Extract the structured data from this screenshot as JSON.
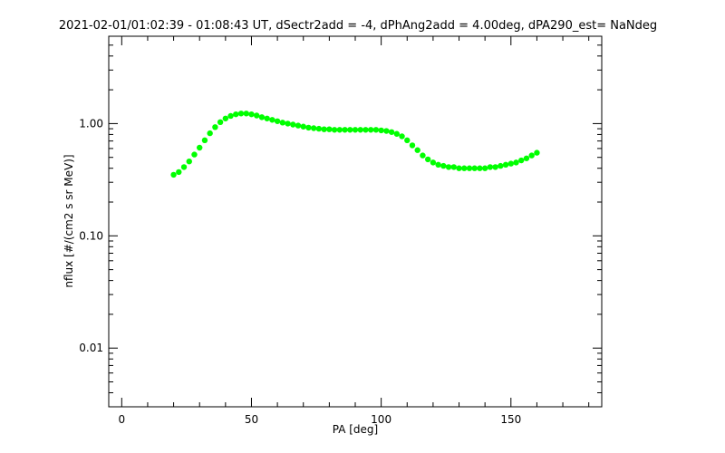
{
  "chart_data": {
    "type": "scatter",
    "title": "2021-02-01/01:02:39 - 01:08:43 UT, dSectr2add = -4, dPhAng2add = 4.00deg, dPA290_est=   NaNdeg",
    "xlabel": "PA [deg]",
    "ylabel": "nflux [#/(cm2 s sr MeV)]",
    "xlim": [
      -5,
      185
    ],
    "ylim": [
      0.003,
      6.0
    ],
    "yscale": "log",
    "x_ticks": [
      0,
      50,
      100,
      150
    ],
    "x_tick_labels": [
      "0",
      "50",
      "100",
      "150"
    ],
    "y_ticks": [
      0.01,
      0.1,
      1.0
    ],
    "y_tick_labels": [
      "0.01",
      "0.10",
      "1.00"
    ],
    "grid": false,
    "marker_color": "#00ff00",
    "series": [
      {
        "x": [
          20,
          22,
          24,
          26,
          28,
          30,
          32,
          34,
          36,
          38,
          40,
          42,
          44,
          46,
          48,
          50,
          52,
          54,
          56,
          58,
          60,
          62,
          64,
          66,
          68,
          70,
          72,
          74,
          76,
          78,
          80,
          82,
          84,
          86,
          88,
          90,
          92,
          94,
          96,
          98,
          100,
          102,
          104,
          106,
          108,
          110,
          112,
          114,
          116,
          118,
          120,
          122,
          124,
          126,
          128,
          130,
          132,
          134,
          136,
          138,
          140,
          142,
          144,
          146,
          148,
          150,
          152,
          154,
          156,
          158,
          160
        ],
        "y": [
          0.35,
          0.37,
          0.41,
          0.46,
          0.53,
          0.61,
          0.71,
          0.82,
          0.93,
          1.03,
          1.11,
          1.17,
          1.21,
          1.23,
          1.23,
          1.21,
          1.18,
          1.14,
          1.11,
          1.08,
          1.05,
          1.02,
          1.0,
          0.98,
          0.96,
          0.94,
          0.92,
          0.91,
          0.9,
          0.89,
          0.89,
          0.88,
          0.88,
          0.88,
          0.88,
          0.88,
          0.88,
          0.88,
          0.88,
          0.88,
          0.87,
          0.86,
          0.84,
          0.81,
          0.77,
          0.71,
          0.64,
          0.58,
          0.52,
          0.48,
          0.45,
          0.43,
          0.42,
          0.41,
          0.41,
          0.4,
          0.4,
          0.4,
          0.4,
          0.4,
          0.4,
          0.41,
          0.41,
          0.42,
          0.43,
          0.44,
          0.45,
          0.47,
          0.49,
          0.52,
          0.55
        ]
      }
    ]
  }
}
